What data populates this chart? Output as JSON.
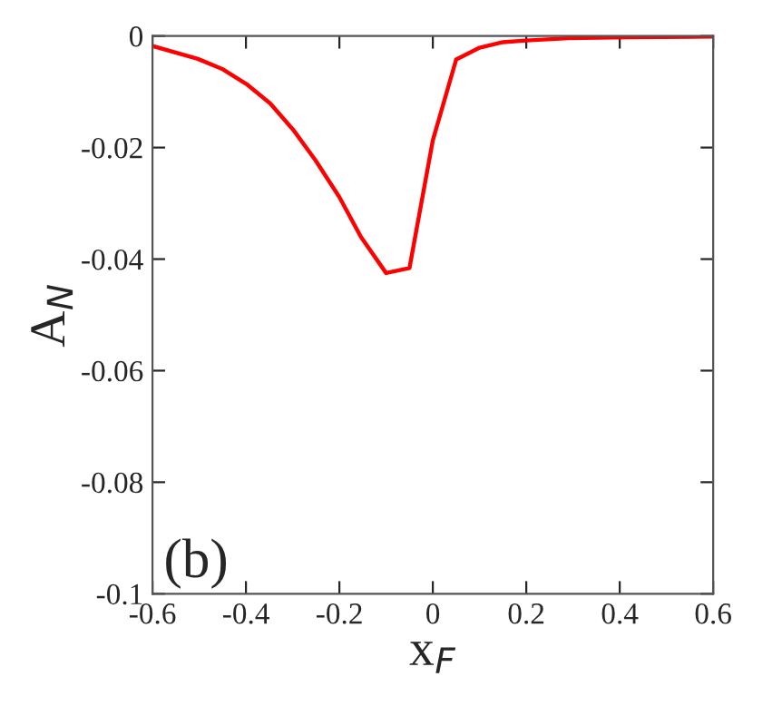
{
  "chart_data": {
    "type": "line",
    "xlabel": "x$_{F}$",
    "ylabel": "A$_{N}$",
    "annotations": [
      "(b)"
    ],
    "series": [
      {
        "color": "#ff0000",
        "x": [
          -0.6,
          -0.503,
          -0.451,
          -0.399,
          -0.348,
          -0.299,
          -0.251,
          -0.2,
          -0.154,
          -0.1,
          -0.05,
          0.0,
          0.05,
          0.1,
          0.15,
          0.2,
          0.29,
          0.42,
          0.6
        ],
        "values": [
          -0.0018,
          -0.0041,
          -0.0059,
          -0.0086,
          -0.0121,
          -0.0168,
          -0.0223,
          -0.0289,
          -0.036,
          -0.0425,
          -0.0416,
          -0.0187,
          -0.0042,
          -0.0021,
          -0.0011,
          -0.0008,
          -0.0004,
          -0.0002,
          -0.0001
        ]
      }
    ],
    "xlim": [
      -0.6,
      0.6
    ],
    "ylim": [
      -0.1,
      0.0
    ],
    "xticks": [
      {
        "value": -0.6,
        "label": "-0.6"
      },
      {
        "value": -0.4,
        "label": "-0.4"
      },
      {
        "value": -0.2,
        "label": "-0.2"
      },
      0,
      0.2,
      0.4,
      0.6
    ],
    "yticks": [
      {
        "value": -0.1,
        "label": "-0.1"
      },
      {
        "value": -0.08,
        "label": "-0.08"
      },
      {
        "value": -0.06,
        "label": "-0.06"
      },
      {
        "value": -0.04,
        "label": "-0.04"
      },
      {
        "value": -0.02,
        "label": "-0.02"
      },
      0
    ],
    "grid": false,
    "legend": false
  }
}
